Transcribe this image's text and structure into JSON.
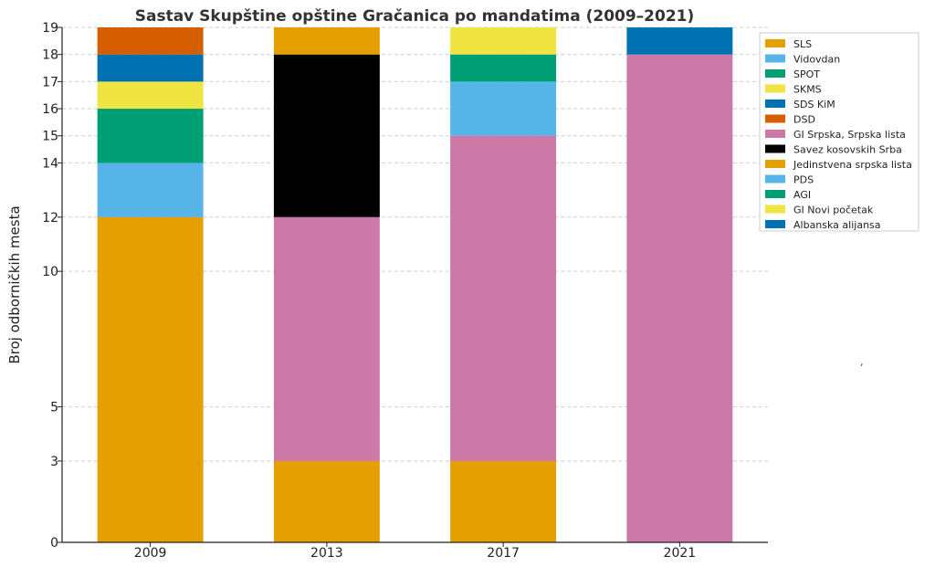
{
  "chart_data": {
    "type": "bar",
    "stacked": true,
    "title": "Sastav Skupštine opštine Gračanica po mandatima (2009–2021)",
    "xlabel": "",
    "ylabel": "Broj odborničkih mesta",
    "categories": [
      "2009",
      "2013",
      "2017",
      "2021"
    ],
    "ylim": [
      0,
      19
    ],
    "yticks": [
      0,
      3,
      5,
      10,
      12,
      14,
      15,
      16,
      17,
      18,
      19
    ],
    "grid": true,
    "legend_position": "top-right",
    "series": [
      {
        "name": "SLS",
        "color": "#E69F00",
        "values": [
          12,
          3,
          3,
          0
        ]
      },
      {
        "name": "Vidovdan",
        "color": "#56B4E9",
        "values": [
          2,
          0,
          0,
          0
        ]
      },
      {
        "name": "SPOT",
        "color": "#009E73",
        "values": [
          2,
          0,
          0,
          0
        ]
      },
      {
        "name": "SKMS",
        "color": "#F0E442",
        "values": [
          1,
          0,
          0,
          0
        ]
      },
      {
        "name": "SDS KiM",
        "color": "#0072B2",
        "values": [
          1,
          0,
          0,
          0
        ]
      },
      {
        "name": "DSD",
        "color": "#D55E00",
        "values": [
          1,
          0,
          0,
          0
        ]
      },
      {
        "name": "GI Srpska, Srpska lista",
        "color": "#CC79A7",
        "values": [
          0,
          9,
          12,
          18
        ]
      },
      {
        "name": "Savez kosovskih Srba",
        "color": "#000000",
        "values": [
          0,
          6,
          0,
          0
        ]
      },
      {
        "name": "Jedinstvena srpska lista",
        "color": "#E69F00",
        "values": [
          0,
          1,
          0,
          0
        ]
      },
      {
        "name": "PDS",
        "color": "#56B4E9",
        "values": [
          0,
          0,
          2,
          0
        ]
      },
      {
        "name": "AGI",
        "color": "#009E73",
        "values": [
          0,
          0,
          1,
          0
        ]
      },
      {
        "name": "GI Novi početak",
        "color": "#F0E442",
        "values": [
          0,
          0,
          1,
          0
        ]
      },
      {
        "name": "Albanska alijansa",
        "color": "#0072B2",
        "values": [
          0,
          0,
          0,
          1
        ]
      }
    ]
  },
  "stray_mark": ","
}
